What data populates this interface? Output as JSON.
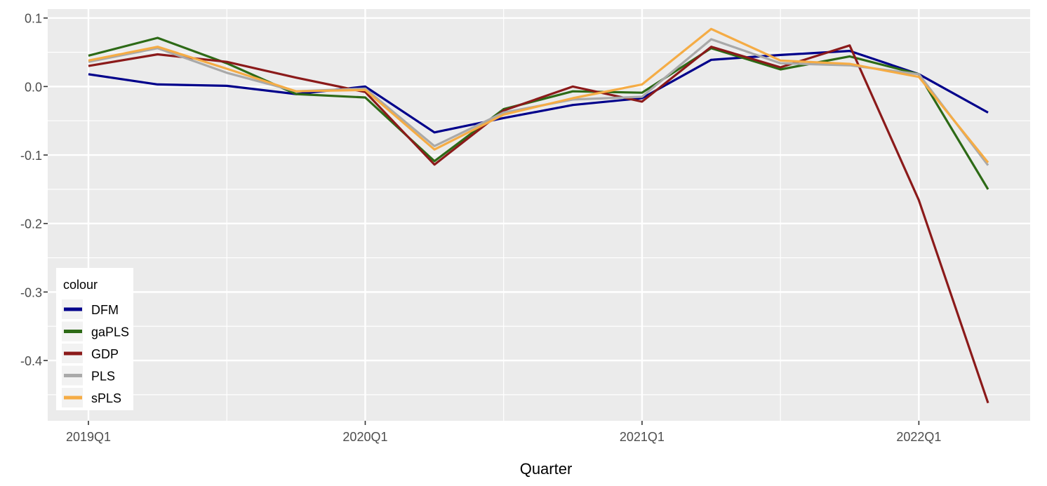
{
  "chart_data": {
    "type": "line",
    "title": "",
    "xlabel": "Quarter",
    "ylabel": "",
    "x": [
      "2019Q1",
      "2019Q2",
      "2019Q3",
      "2019Q4",
      "2020Q1",
      "2020Q2",
      "2020Q3",
      "2020Q4",
      "2021Q1",
      "2021Q2",
      "2021Q3",
      "2021Q4",
      "2022Q1",
      "2022Q2"
    ],
    "x_tick_labels": [
      "2019Q1",
      "2020Q1",
      "2021Q1",
      "2022Q1"
    ],
    "x_tick_positions": [
      0,
      4,
      8,
      12
    ],
    "y_tick_labels": [
      "0.1",
      "0.0",
      "-0.1",
      "-0.2",
      "-0.3",
      "-0.4"
    ],
    "y_tick_values": [
      0.1,
      0.0,
      -0.1,
      -0.2,
      -0.3,
      -0.4
    ],
    "ylim": [
      -0.488,
      0.113
    ],
    "grid": true,
    "panel_background": "#ebebeb",
    "grid_color": "#ffffff",
    "legend": {
      "title": "colour",
      "placement": "bottom-left"
    },
    "series": [
      {
        "name": "DFM",
        "color": "#00008b",
        "values": [
          0.018,
          0.003,
          0.001,
          -0.011,
          0.0,
          -0.067,
          -0.046,
          -0.027,
          -0.017,
          0.039,
          0.046,
          0.052,
          0.018,
          -0.038
        ]
      },
      {
        "name": "gaPLS",
        "color": "#2d6a16",
        "values": [
          0.045,
          0.071,
          0.034,
          -0.011,
          -0.016,
          -0.109,
          -0.033,
          -0.007,
          -0.009,
          0.056,
          0.025,
          0.044,
          0.018,
          -0.15
        ]
      },
      {
        "name": "GDP",
        "color": "#8b1a1a",
        "values": [
          0.03,
          0.047,
          0.036,
          0.013,
          -0.008,
          -0.114,
          -0.035,
          0.0,
          -0.022,
          0.058,
          0.028,
          0.06,
          -0.166,
          -0.462
        ]
      },
      {
        "name": "PLS",
        "color": "#a9a9a9",
        "values": [
          0.036,
          0.056,
          0.02,
          -0.007,
          -0.003,
          -0.087,
          -0.038,
          -0.019,
          -0.015,
          0.069,
          0.034,
          0.031,
          0.018,
          -0.115
        ]
      },
      {
        "name": "sPLS",
        "color": "#f5ac45",
        "values": [
          0.038,
          0.058,
          0.026,
          -0.007,
          -0.005,
          -0.092,
          -0.041,
          -0.017,
          0.003,
          0.084,
          0.038,
          0.033,
          0.014,
          -0.111
        ]
      }
    ]
  }
}
